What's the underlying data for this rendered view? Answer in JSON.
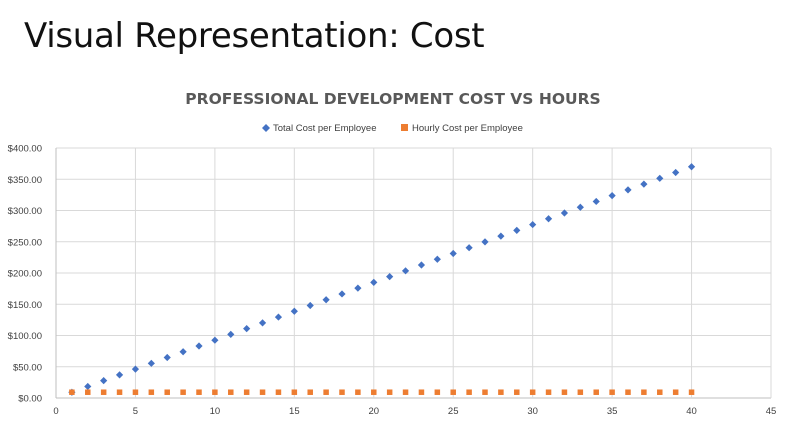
{
  "slide": {
    "title": "Visual Representation: Cost"
  },
  "chart_data": {
    "type": "scatter",
    "title": "PROFESSIONAL DEVELOPMENT COST VS HOURS",
    "xlabel": "",
    "ylabel": "",
    "xlim": [
      0,
      45
    ],
    "ylim": [
      0,
      400
    ],
    "x_ticks": [
      "0",
      "5",
      "10",
      "15",
      "20",
      "25",
      "30",
      "35",
      "40",
      "45"
    ],
    "y_ticks": [
      "$0.00",
      "$50.00",
      "$100.00",
      "$150.00",
      "$200.00",
      "$250.00",
      "$300.00",
      "$350.00",
      "$400.00"
    ],
    "grid": true,
    "legend_position": "top",
    "x": [
      1,
      2,
      3,
      4,
      5,
      6,
      7,
      8,
      9,
      10,
      11,
      12,
      13,
      14,
      15,
      16,
      17,
      18,
      19,
      20,
      21,
      22,
      23,
      24,
      25,
      26,
      27,
      28,
      29,
      30,
      31,
      32,
      33,
      34,
      35,
      36,
      37,
      38,
      39,
      40
    ],
    "series": [
      {
        "name": "Total Cost per Employee",
        "color": "#4472C4",
        "marker": "diamond",
        "values": [
          9.25,
          18.5,
          27.75,
          37,
          46.25,
          55.5,
          64.75,
          74,
          83.25,
          92.5,
          101.75,
          111,
          120.25,
          129.5,
          138.75,
          148,
          157.25,
          166.5,
          175.75,
          185,
          194.25,
          203.5,
          212.75,
          222,
          231.25,
          240.5,
          249.75,
          259,
          268.25,
          277.5,
          286.75,
          296,
          305.25,
          314.5,
          323.75,
          333,
          342.25,
          351.5,
          360.75,
          370
        ]
      },
      {
        "name": "Hourly Cost per Employee",
        "color": "#ED7D31",
        "marker": "square",
        "values": [
          9.25,
          9.25,
          9.25,
          9.25,
          9.25,
          9.25,
          9.25,
          9.25,
          9.25,
          9.25,
          9.25,
          9.25,
          9.25,
          9.25,
          9.25,
          9.25,
          9.25,
          9.25,
          9.25,
          9.25,
          9.25,
          9.25,
          9.25,
          9.25,
          9.25,
          9.25,
          9.25,
          9.25,
          9.25,
          9.25,
          9.25,
          9.25,
          9.25,
          9.25,
          9.25,
          9.25,
          9.25,
          9.25,
          9.25,
          9.25
        ]
      }
    ]
  }
}
